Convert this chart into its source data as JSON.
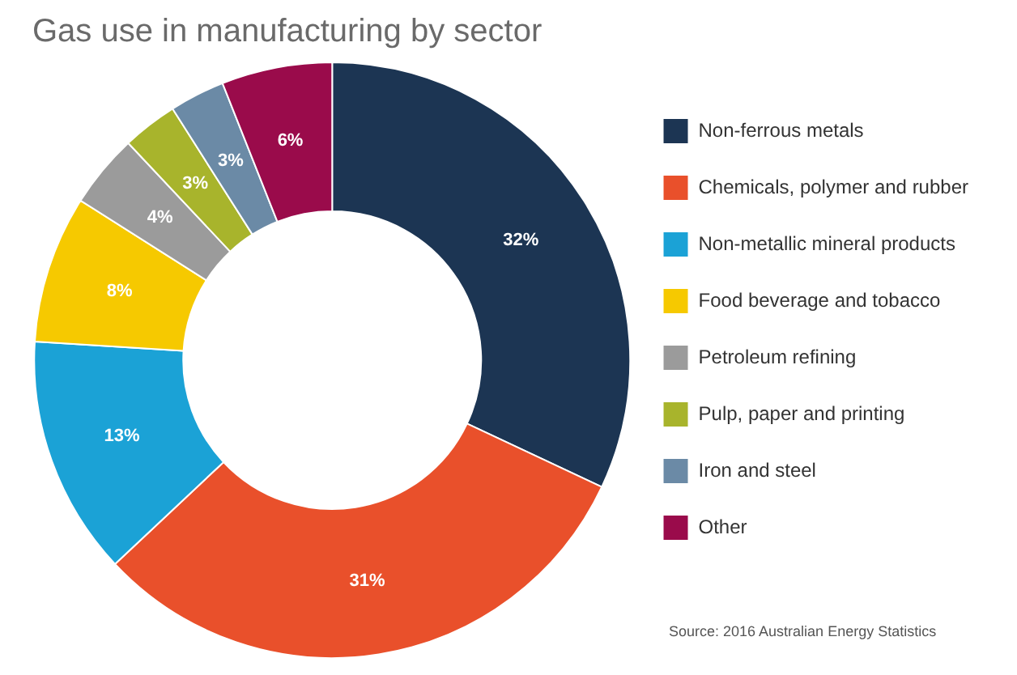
{
  "chart_data": {
    "type": "donut",
    "title": "Gas use in manufacturing by sector",
    "categories": [
      "Non-ferrous metals",
      "Chemicals, polymer and rubber",
      "Non-metallic mineral products",
      "Food beverage and tobacco",
      "Petroleum refining",
      "Pulp, paper and printing",
      "Iron and steel",
      "Other"
    ],
    "values": [
      32,
      31,
      13,
      8,
      4,
      3,
      3,
      6
    ],
    "colors": [
      "#1c3553",
      "#e9502b",
      "#1ba2d6",
      "#f6c900",
      "#9b9b9b",
      "#a8b42c",
      "#6b8aa6",
      "#9a0b4b"
    ],
    "value_labels": [
      "32%",
      "31%",
      "13%",
      "8%",
      "4%",
      "3%",
      "3%",
      "6%"
    ],
    "legend": "right",
    "annotations": [
      "Source: 2016 Australian Energy Statistics"
    ]
  }
}
